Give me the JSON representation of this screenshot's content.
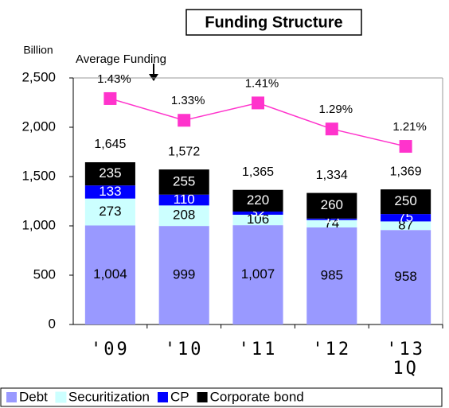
{
  "chart_data": {
    "type": "bar",
    "stacked": true,
    "title": "Funding Structure",
    "y_label": "Billion",
    "annotation": "Average Funding",
    "categories": [
      "'09",
      "'10",
      "'11",
      "'12",
      "'13\n1Q"
    ],
    "series": [
      {
        "name": "Debt",
        "color": "#9999ff",
        "label_color": "#000000",
        "values": [
          1004,
          999,
          1007,
          985,
          958
        ],
        "value_labels": [
          "1,004",
          "999",
          "1,007",
          "985",
          "958"
        ]
      },
      {
        "name": "Securitization",
        "color": "#ccffff",
        "label_color": "#000000",
        "values": [
          273,
          208,
          106,
          74,
          87
        ]
      },
      {
        "name": "CP",
        "color": "#0000ff",
        "label_color": "#ffffff",
        "values": [
          133,
          110,
          32,
          15,
          75
        ]
      },
      {
        "name": "Corporate bond",
        "color": "#000000",
        "label_color": "#ffffff",
        "values": [
          235,
          255,
          220,
          260,
          250
        ]
      },
      {
        "name": "Average Funding",
        "type": "line",
        "axis": "y2",
        "color": "#ff33cc",
        "values": [
          1.43,
          1.33,
          1.41,
          1.29,
          1.21
        ],
        "value_labels": [
          "1.43%",
          "1.33%",
          "1.41%",
          "1.29%",
          "1.21%"
        ]
      }
    ],
    "totals": [
      1645,
      1572,
      1365,
      1334,
      1369
    ],
    "total_labels": [
      "1,645",
      "1,572",
      "1,365",
      "1,334",
      "1,369"
    ],
    "ylim": [
      0,
      2500
    ],
    "yticks": [
      0,
      500,
      {
        "value": 1000,
        "label": "1,000"
      },
      {
        "value": 1500,
        "label": "1,500"
      },
      {
        "value": 2000,
        "label": "2,000"
      },
      {
        "value": 2500,
        "label": "2,500"
      }
    ],
    "y2lim": [
      0.39,
      1.525
    ],
    "legend": "bottom"
  }
}
